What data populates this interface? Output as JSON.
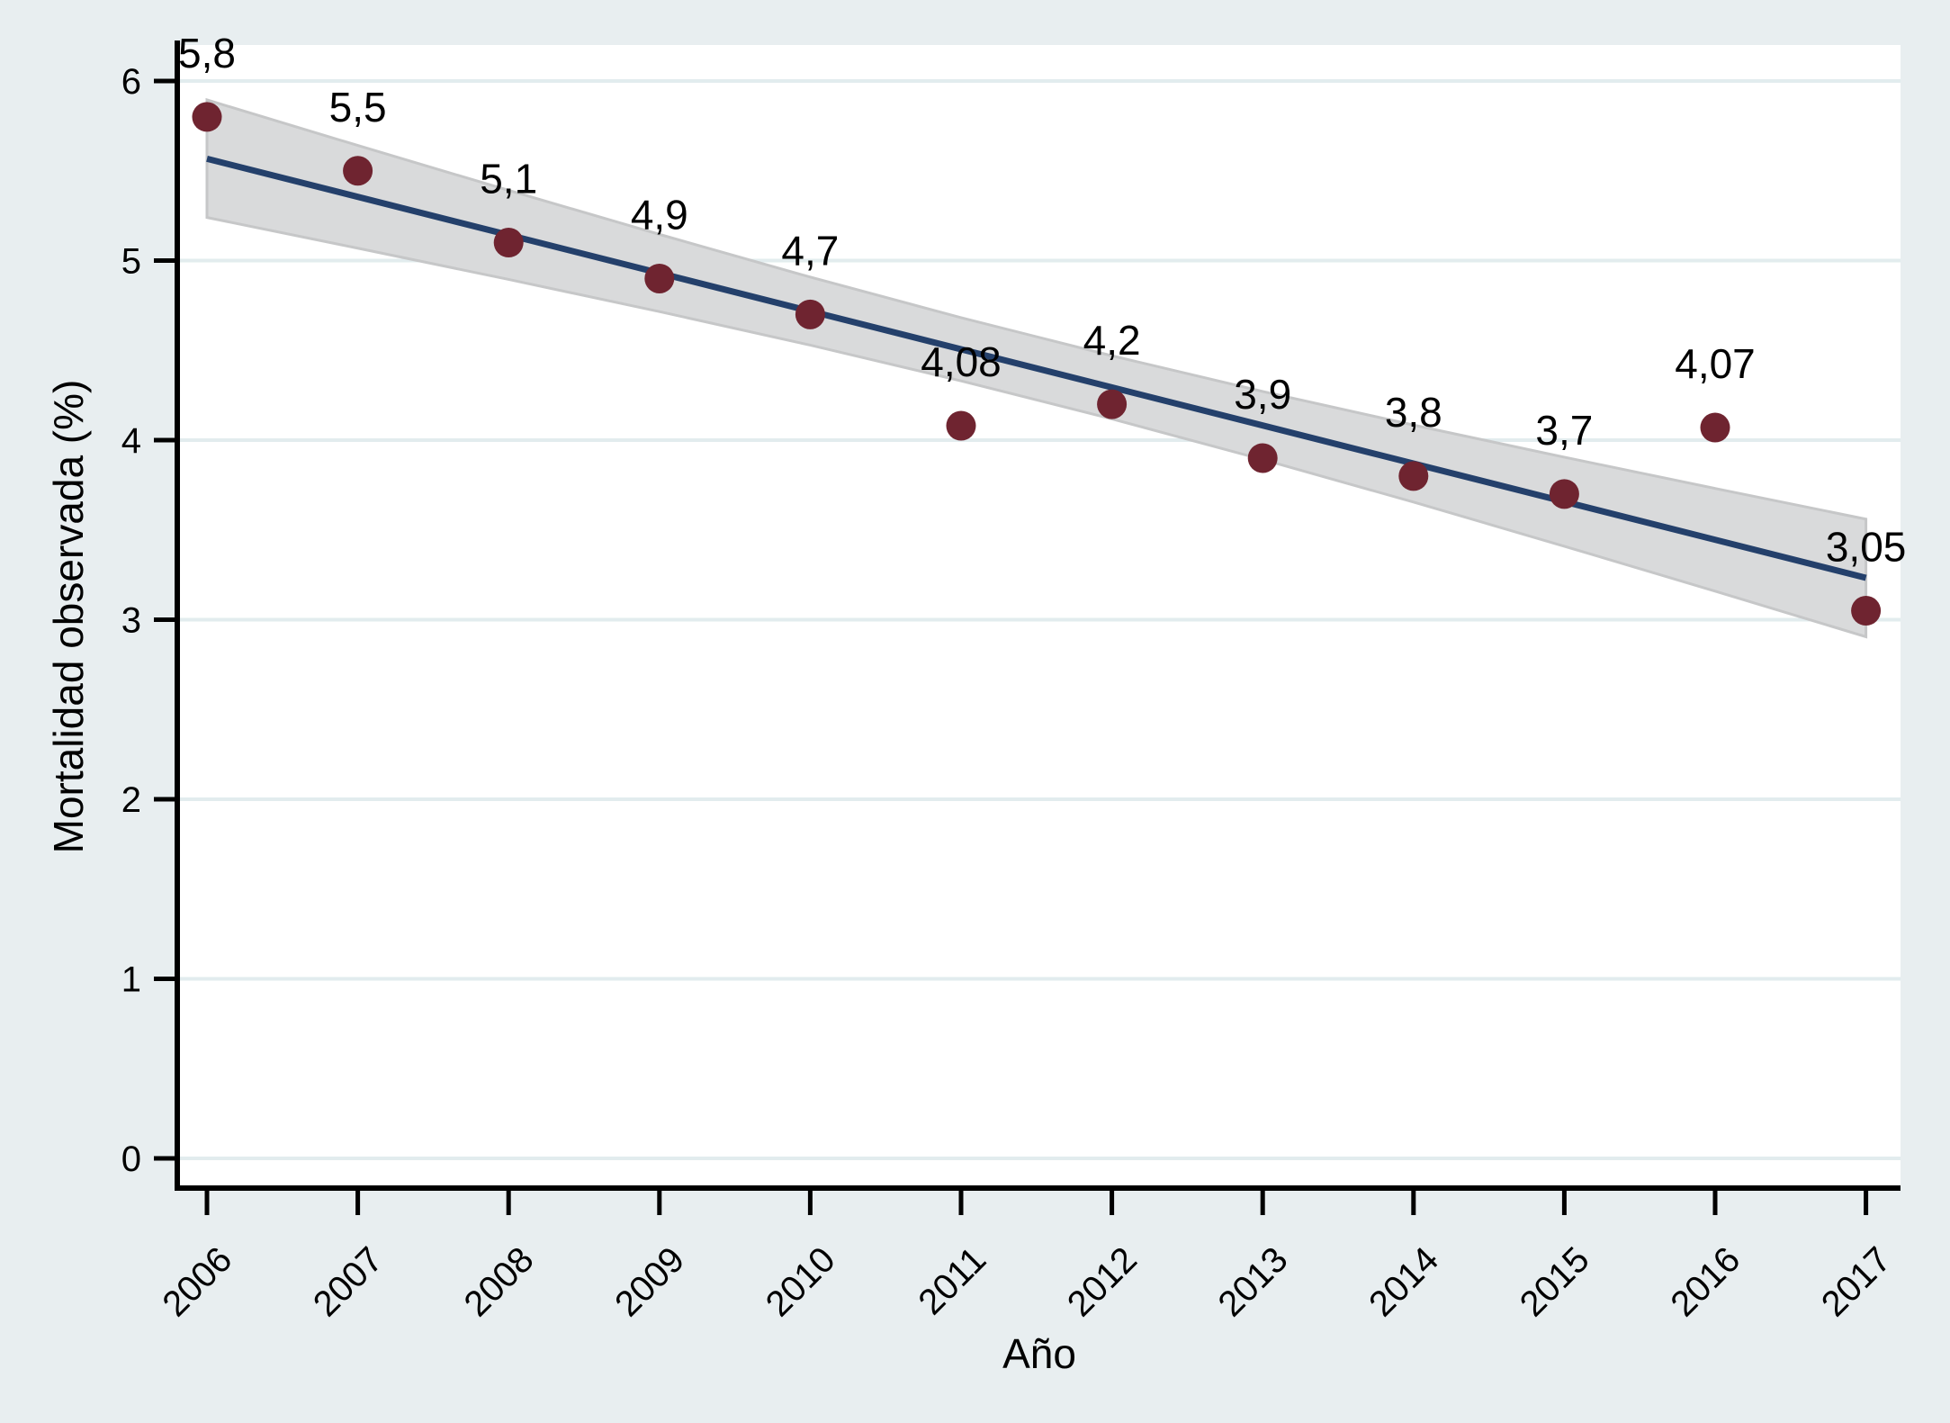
{
  "chart_data": {
    "type": "scatter",
    "title": "",
    "xlabel": "Año",
    "ylabel": "Mortalidad observada (%)",
    "x": [
      2006,
      2007,
      2008,
      2009,
      2010,
      2011,
      2012,
      2013,
      2014,
      2015,
      2016,
      2017
    ],
    "series": [
      {
        "name": "Mortalidad observada",
        "values": [
          5.8,
          5.5,
          5.1,
          4.9,
          4.7,
          4.08,
          4.2,
          3.9,
          3.8,
          3.7,
          4.07,
          3.05
        ],
        "point_labels": [
          "5,8",
          "5,5",
          "5,1",
          "4,9",
          "4,7",
          "4,08",
          "4,2",
          "3,9",
          "3,8",
          "3,7",
          "4,07",
          "3,05"
        ]
      }
    ],
    "fit_line": {
      "x_start": 2006,
      "y_start": 5.567,
      "x_end": 2017,
      "y_end": 3.233
    },
    "confidence_band": {
      "upper": [
        5.895,
        5.641,
        5.391,
        5.146,
        4.908,
        4.682,
        4.47,
        4.271,
        4.084,
        3.905,
        3.731,
        3.56
      ],
      "lower": [
        5.24,
        5.069,
        4.895,
        4.716,
        4.529,
        4.33,
        4.118,
        3.892,
        3.655,
        3.409,
        3.159,
        2.905
      ]
    },
    "xlim": [
      2006,
      2017
    ],
    "ylim": [
      0,
      6
    ],
    "yticks": [
      0,
      1,
      2,
      3,
      4,
      5,
      6
    ],
    "xticks": [
      2006,
      2007,
      2008,
      2009,
      2010,
      2011,
      2012,
      2013,
      2014,
      2015,
      2016,
      2017
    ],
    "grid": true,
    "x_tick_rotation": 45,
    "legend": "none"
  },
  "colors": {
    "background": "#e8eef0",
    "plot_background": "#ffffff",
    "gridline": "#e2ecee",
    "axis": "#000000",
    "text": "#000000",
    "marker": "#6f2430",
    "fit_line": "#24406b",
    "ci_fill": "#d9dadb",
    "ci_edge": "#c6c7c8"
  }
}
